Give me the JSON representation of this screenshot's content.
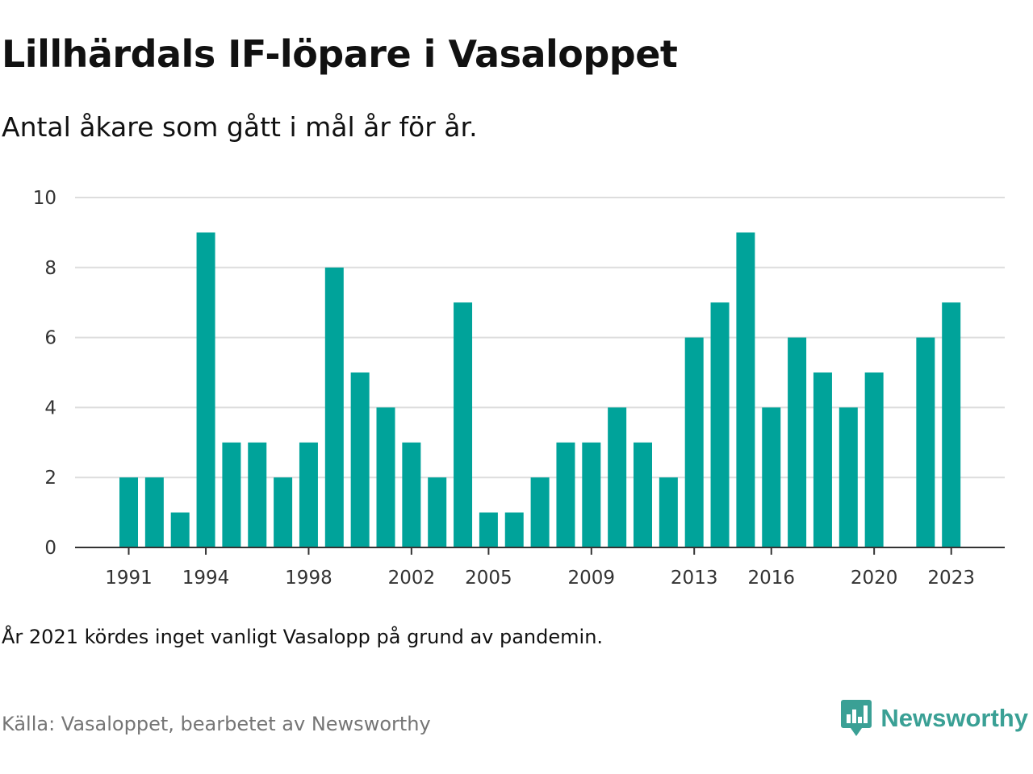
{
  "title": "Lillhärdals IF-löpare i Vasaloppet",
  "subtitle": "Antal åkare som gått i mål år för år.",
  "note": "År 2021 kördes inget vanligt Vasalopp på grund av pandemin.",
  "source": "Källa: Vasaloppet, bearbetet av Newsworthy",
  "brand": {
    "name": "Newsworthy",
    "icon": "newsworthy-logo-icon",
    "color": "#3aa095"
  },
  "colors": {
    "bar": "#00a39a",
    "grid": "#dddddd",
    "axis": "#333333"
  },
  "chart_data": {
    "type": "bar",
    "categories": [
      "1991",
      "1992",
      "1993",
      "1994",
      "1995",
      "1996",
      "1997",
      "1998",
      "1999",
      "2000",
      "2001",
      "2002",
      "2003",
      "2004",
      "2005",
      "2006",
      "2007",
      "2008",
      "2009",
      "2010",
      "2011",
      "2012",
      "2013",
      "2014",
      "2015",
      "2016",
      "2017",
      "2018",
      "2019",
      "2020",
      "2021",
      "2022",
      "2023"
    ],
    "values": [
      2,
      2,
      1,
      9,
      3,
      3,
      2,
      3,
      8,
      5,
      4,
      3,
      2,
      7,
      1,
      1,
      2,
      3,
      3,
      4,
      3,
      2,
      6,
      7,
      9,
      4,
      6,
      5,
      4,
      5,
      null,
      6,
      7
    ],
    "x_tick_labels": [
      "1991",
      "1994",
      "1998",
      "2002",
      "2005",
      "2009",
      "2013",
      "2016",
      "2020",
      "2023"
    ],
    "y_ticks": [
      "0",
      "2",
      "4",
      "6",
      "8",
      "10"
    ],
    "ylim": [
      0,
      10
    ],
    "grid": true,
    "legend": "none",
    "title": "Lillhärdals IF-löpare i Vasaloppet",
    "xlabel": "",
    "ylabel": ""
  }
}
